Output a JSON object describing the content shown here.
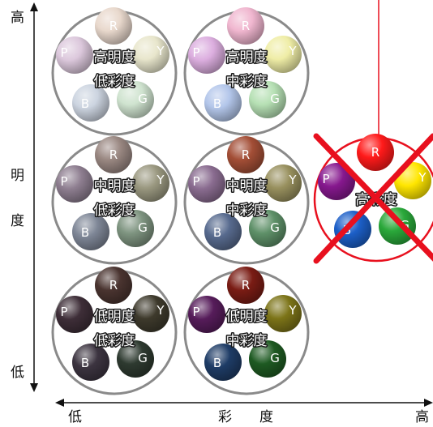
{
  "axes": {
    "y_high": "高",
    "y_title_1": "明",
    "y_title_2": "度",
    "y_low": "低",
    "x_low": "低",
    "x_title_1": "彩",
    "x_title_2": "度",
    "x_high": "高"
  },
  "groups": [
    {
      "id": "hl-ls",
      "lines": [
        "高明度",
        "低彩度"
      ],
      "crossed": false,
      "balls": {
        "R": "#e8d8cc",
        "Y": "#e8e6cc",
        "G": "#cfe3cf",
        "B": "#ccd4e0",
        "P": "#dcc8dc"
      },
      "labels": {
        "R": "R",
        "Y": "Y",
        "G": "G",
        "B": "B",
        "P": "P"
      }
    },
    {
      "id": "hl-ms",
      "lines": [
        "高明度",
        "中彩度"
      ],
      "crossed": false,
      "balls": {
        "R": "#f0b6cf",
        "Y": "#efeda6",
        "G": "#b6e0b4",
        "B": "#b3c6ea",
        "P": "#dcaedf"
      },
      "labels": {
        "R": "R",
        "Y": "Y",
        "G": "G",
        "B": "B",
        "P": "P"
      }
    },
    {
      "id": "ml-ls",
      "lines": [
        "中明度",
        "低彩度"
      ],
      "crossed": false,
      "balls": {
        "R": "#9a8882",
        "Y": "#9a9880",
        "G": "#7e9480",
        "B": "#7e8696",
        "P": "#8e7e90"
      },
      "labels": {
        "R": "R",
        "Y": "Y",
        "G": "G",
        "B": "B",
        "P": "P"
      }
    },
    {
      "id": "ml-ms",
      "lines": [
        "中明度",
        "中彩度"
      ],
      "crossed": false,
      "balls": {
        "R": "#a34e36",
        "Y": "#98905e",
        "G": "#5e9068",
        "B": "#576a8e",
        "P": "#8a6c90"
      },
      "labels": {
        "R": "R",
        "Y": "Y",
        "G": "G",
        "B": "B",
        "P": "P"
      }
    },
    {
      "id": "ll-ls",
      "lines": [
        "低明度",
        "低彩度"
      ],
      "crossed": false,
      "balls": {
        "R": "#4a3430",
        "Y": "#3e3a2c",
        "G": "#2e3a30",
        "B": "#3c3440",
        "P": "#3e2e38"
      },
      "labels": {
        "R": "R",
        "Y": "Y",
        "G": "G",
        "B": "B",
        "P": "P"
      }
    },
    {
      "id": "ll-ms",
      "lines": [
        "低明度",
        "中彩度"
      ],
      "crossed": false,
      "balls": {
        "R": "#7a1c14",
        "Y": "#7c7418",
        "G": "#1e5a22",
        "B": "#1e3c66",
        "P": "#561c5a"
      },
      "labels": {
        "R": "R",
        "Y": "Y",
        "G": "G",
        "B": "B",
        "P": "P"
      }
    },
    {
      "id": "hs",
      "lines": [
        "高彩度"
      ],
      "crossed": true,
      "balls": {
        "R": "#ff1a1a",
        "Y": "#ffe600",
        "G": "#2aa83a",
        "B": "#1c5fc8",
        "P": "#86188e"
      },
      "labels": {
        "R": "R",
        "Y": "Y",
        "G": "G",
        "B": "B",
        "P": "P"
      }
    }
  ],
  "colors": {
    "ring": "#8a8a8a",
    "ring_crossed": "#e8101e",
    "cross": "#e8101e",
    "axis": "#111111"
  }
}
